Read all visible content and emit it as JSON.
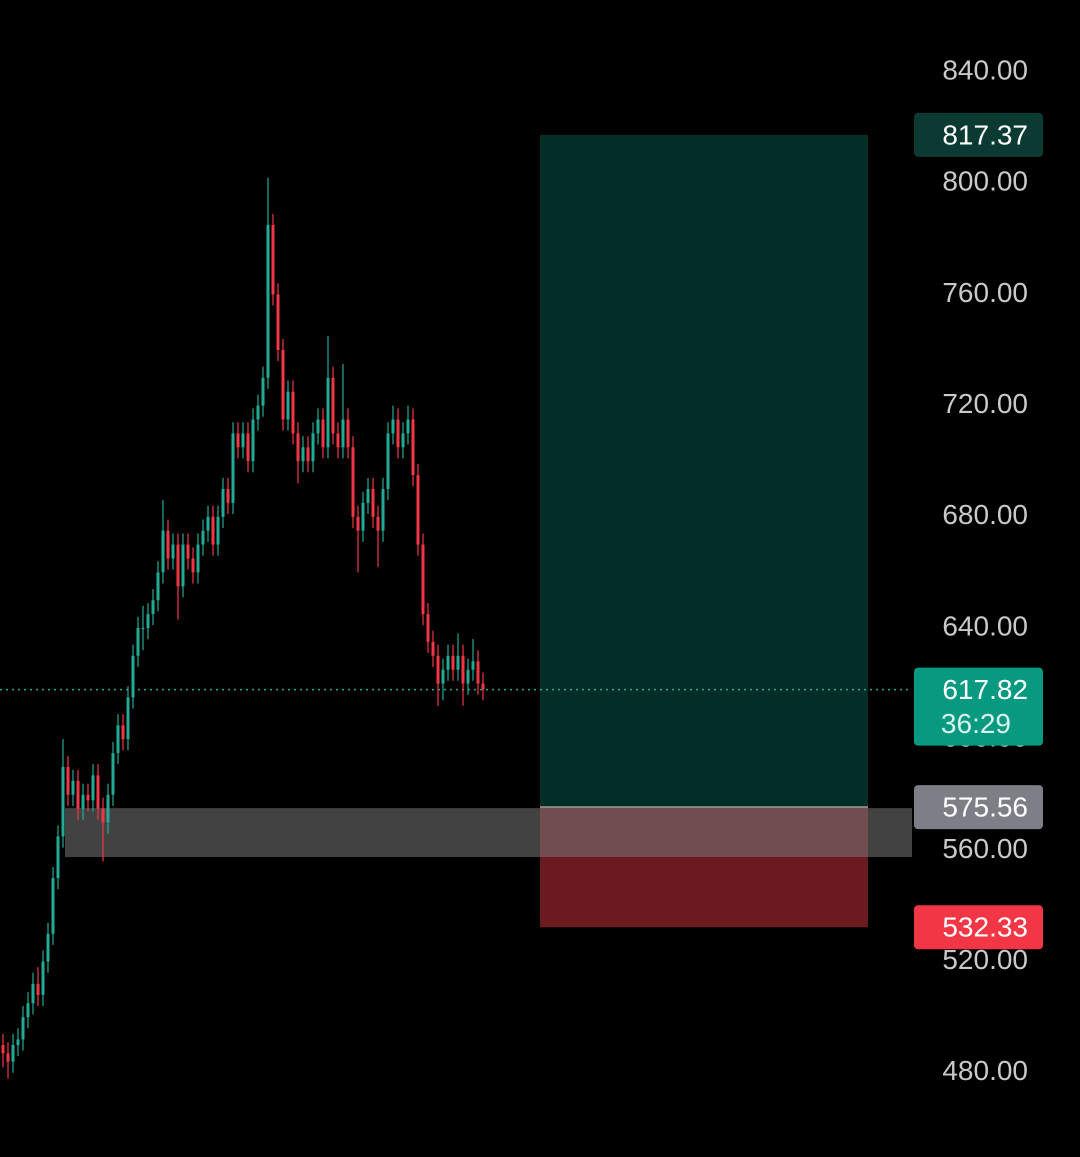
{
  "chart_data": {
    "type": "candlestick",
    "up_color": "#22ab94",
    "down_color": "#f23645",
    "ylim": [
      449.7,
      865.9
    ],
    "yticks": [
      {
        "value": 840,
        "label": "840.00"
      },
      {
        "value": 800,
        "label": "800.00"
      },
      {
        "value": 760,
        "label": "760.00"
      },
      {
        "value": 720,
        "label": "720.00"
      },
      {
        "value": 680,
        "label": "680.00"
      },
      {
        "value": 640,
        "label": "640.00"
      },
      {
        "value": 600,
        "label": "600.00"
      },
      {
        "value": 560,
        "label": "560.00"
      },
      {
        "value": 520,
        "label": "520.00"
      },
      {
        "value": 480,
        "label": "480.00"
      }
    ],
    "ohlc": [
      [
        490,
        494,
        482,
        487
      ],
      [
        487,
        491,
        478,
        484
      ],
      [
        484,
        494,
        480,
        490
      ],
      [
        490,
        496,
        486,
        492
      ],
      [
        492,
        504,
        488,
        500
      ],
      [
        500,
        509,
        496,
        505
      ],
      [
        505,
        516,
        501,
        512
      ],
      [
        512,
        518,
        504,
        508
      ],
      [
        508,
        524,
        504,
        520
      ],
      [
        520,
        534,
        516,
        530
      ],
      [
        530,
        554,
        526,
        550
      ],
      [
        550,
        569,
        546,
        565
      ],
      [
        565,
        600,
        561,
        590
      ],
      [
        590,
        594,
        576,
        580
      ],
      [
        580,
        589,
        576,
        585
      ],
      [
        585,
        589,
        571,
        575
      ],
      [
        575,
        584,
        571,
        580
      ],
      [
        580,
        584,
        574,
        578
      ],
      [
        578,
        591,
        574,
        587
      ],
      [
        587,
        591,
        571,
        575
      ],
      [
        575,
        579,
        556,
        570
      ],
      [
        570,
        584,
        566,
        580
      ],
      [
        580,
        599,
        576,
        595
      ],
      [
        595,
        609,
        591,
        605
      ],
      [
        605,
        609,
        596,
        600
      ],
      [
        600,
        619,
        596,
        615
      ],
      [
        615,
        634,
        611,
        630
      ],
      [
        630,
        644,
        626,
        640
      ],
      [
        640,
        648,
        632,
        640
      ],
      [
        640,
        649,
        636,
        645
      ],
      [
        645,
        654,
        641,
        650
      ],
      [
        650,
        664,
        646,
        660
      ],
      [
        660,
        686,
        656,
        675
      ],
      [
        675,
        679,
        661,
        665
      ],
      [
        665,
        674,
        661,
        670
      ],
      [
        670,
        674,
        643,
        655
      ],
      [
        655,
        674,
        651,
        670
      ],
      [
        670,
        674,
        661,
        665
      ],
      [
        665,
        669,
        656,
        660
      ],
      [
        660,
        674,
        656,
        670
      ],
      [
        670,
        679,
        666,
        675
      ],
      [
        675,
        684,
        671,
        680
      ],
      [
        680,
        684,
        666,
        670
      ],
      [
        670,
        684,
        666,
        680
      ],
      [
        680,
        694,
        676,
        690
      ],
      [
        690,
        694,
        681,
        685
      ],
      [
        685,
        714,
        681,
        710
      ],
      [
        710,
        714,
        701,
        705
      ],
      [
        705,
        714,
        701,
        710
      ],
      [
        710,
        714,
        696,
        700
      ],
      [
        700,
        719,
        696,
        715
      ],
      [
        715,
        724,
        711,
        720
      ],
      [
        720,
        734,
        716,
        730
      ],
      [
        730,
        802,
        726,
        785
      ],
      [
        785,
        789,
        756,
        760
      ],
      [
        760,
        764,
        736,
        740
      ],
      [
        740,
        744,
        711,
        715
      ],
      [
        715,
        729,
        711,
        725
      ],
      [
        725,
        729,
        706,
        710
      ],
      [
        710,
        714,
        692,
        700
      ],
      [
        700,
        709,
        696,
        705
      ],
      [
        705,
        709,
        696,
        700
      ],
      [
        700,
        714,
        696,
        710
      ],
      [
        710,
        719,
        706,
        715
      ],
      [
        715,
        719,
        701,
        705
      ],
      [
        705,
        745,
        701,
        730
      ],
      [
        730,
        734,
        706,
        710
      ],
      [
        710,
        714,
        701,
        705
      ],
      [
        705,
        735,
        701,
        715
      ],
      [
        715,
        719,
        701,
        705
      ],
      [
        705,
        709,
        676,
        680
      ],
      [
        680,
        684,
        660,
        675
      ],
      [
        675,
        689,
        671,
        685
      ],
      [
        685,
        694,
        681,
        690
      ],
      [
        690,
        694,
        676,
        680
      ],
      [
        680,
        684,
        662,
        675
      ],
      [
        675,
        694,
        671,
        690
      ],
      [
        690,
        714,
        686,
        710
      ],
      [
        710,
        720,
        706,
        715
      ],
      [
        715,
        719,
        701,
        705
      ],
      [
        705,
        714,
        701,
        710
      ],
      [
        710,
        720,
        706,
        715
      ],
      [
        715,
        719,
        691,
        695
      ],
      [
        695,
        699,
        666,
        670
      ],
      [
        670,
        674,
        641,
        645
      ],
      [
        645,
        649,
        631,
        635
      ],
      [
        635,
        639,
        626,
        630
      ],
      [
        630,
        634,
        612,
        620
      ],
      [
        620,
        629,
        614,
        625
      ],
      [
        625,
        634,
        621,
        630
      ],
      [
        630,
        634,
        621,
        625
      ],
      [
        625,
        638,
        621,
        630
      ],
      [
        630,
        634,
        612,
        620
      ],
      [
        620,
        629,
        616,
        625
      ],
      [
        625,
        636,
        621,
        628
      ],
      [
        628,
        632,
        616,
        620
      ],
      [
        620,
        624,
        614,
        617.82
      ]
    ],
    "zone": [
      557.6,
      575.2
    ],
    "position": {
      "target": 817.37,
      "entry": 575.56,
      "stop": 532.33
    },
    "last_price": 617.82,
    "countdown": "36:29"
  }
}
